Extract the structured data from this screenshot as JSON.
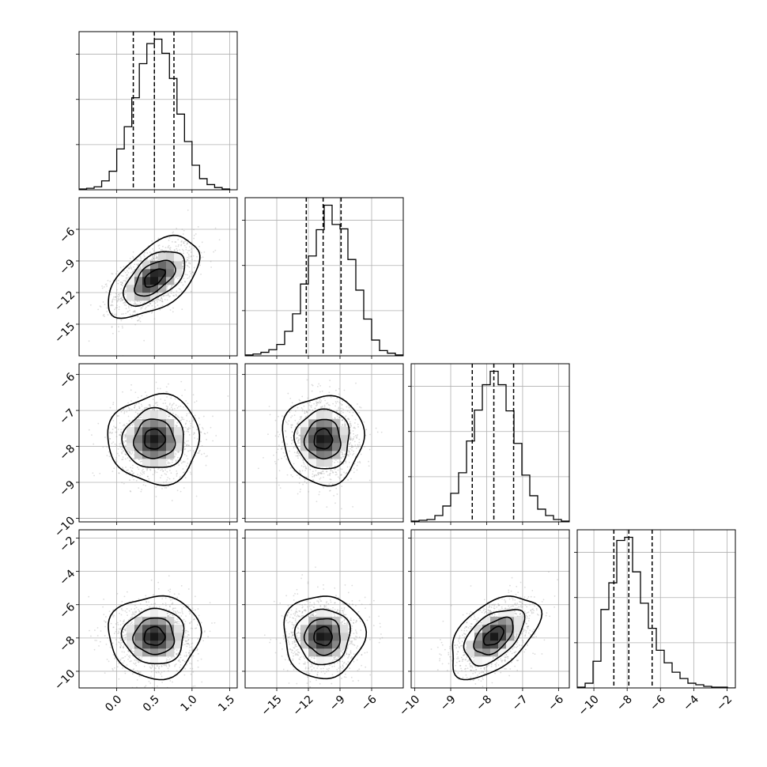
{
  "chart_data": {
    "type": "corner",
    "parameters": [
      {
        "range": [
          -0.5,
          1.6
        ],
        "ticks": [
          0.0,
          0.5,
          1.0,
          1.5
        ],
        "tick_labels": [
          "0.0",
          "0.5",
          "1.0",
          "1.5"
        ],
        "quantiles": [
          0.22,
          0.5,
          0.76
        ],
        "mean": 0.5,
        "sd": 0.27
      },
      {
        "range": [
          -18.0,
          -3.0
        ],
        "ticks": [
          -15,
          -12,
          -9,
          -6
        ],
        "tick_labels": [
          "−15",
          "−12",
          "−9",
          "−6"
        ],
        "quantiles": [
          -12.2,
          -10.6,
          -8.9
        ],
        "mean": -10.6,
        "sd": 1.7
      },
      {
        "range": [
          -10.1,
          -5.7
        ],
        "ticks": [
          -10,
          -9,
          -8,
          -7,
          -6
        ],
        "tick_labels": [
          "−10",
          "−9",
          "−8",
          "−7",
          "−6"
        ],
        "quantiles": [
          -8.4,
          -7.8,
          -7.25
        ],
        "mean": -7.8,
        "sd": 0.55
      },
      {
        "range": [
          -11.0,
          -1.5
        ],
        "ticks": [
          -10,
          -8,
          -6,
          -4,
          -2
        ],
        "tick_labels": [
          "−10",
          "−8",
          "−6",
          "−4",
          "−2"
        ],
        "quantiles": [
          -8.8,
          -7.9,
          -6.5
        ],
        "mean": -7.9,
        "sd": 1.1
      }
    ],
    "correlations": [
      [
        1,
        0.55,
        0.0,
        0.0
      ],
      [
        0.55,
        1,
        0.0,
        0.0
      ],
      [
        0.0,
        0.0,
        1,
        0.5
      ],
      [
        0.0,
        0.0,
        0.5,
        1
      ]
    ],
    "histograms": [
      {
        "edges": [
          -0.5,
          -0.4,
          -0.3,
          -0.2,
          -0.1,
          0.0,
          0.1,
          0.2,
          0.3,
          0.4,
          0.5,
          0.6,
          0.7,
          0.8,
          0.9,
          1.0,
          1.1,
          1.2,
          1.3,
          1.4,
          1.5
        ],
        "counts": [
          1,
          2,
          4,
          12,
          25,
          55,
          85,
          124,
          170,
          197,
          203,
          184,
          150,
          102,
          65,
          33,
          15,
          7,
          3,
          1
        ]
      },
      {
        "edges": [
          -18,
          -17.25,
          -16.5,
          -15.75,
          -15,
          -14.25,
          -13.5,
          -12.75,
          -12,
          -11.25,
          -10.5,
          -9.75,
          -9,
          -8.25,
          -7.5,
          -6.75,
          -6,
          -5.25,
          -4.5,
          -3.75,
          -3
        ],
        "counts": [
          1,
          2,
          4,
          7,
          13,
          28,
          48,
          82,
          114,
          144,
          172,
          150,
          145,
          110,
          75,
          42,
          18,
          6,
          3,
          1
        ]
      },
      {
        "edges": [
          -10.1,
          -9.88,
          -9.66,
          -9.44,
          -9.22,
          -9.0,
          -8.78,
          -8.56,
          -8.34,
          -8.12,
          -7.9,
          -7.68,
          -7.46,
          -7.24,
          -7.02,
          -6.8,
          -6.58,
          -6.36,
          -6.14,
          -5.92,
          -5.7
        ],
        "counts": [
          1,
          2,
          3,
          8,
          20,
          36,
          62,
          102,
          141,
          173,
          190,
          173,
          140,
          99,
          59,
          33,
          16,
          8,
          3,
          1
        ]
      },
      {
        "edges": [
          -11.0,
          -10.525,
          -10.05,
          -9.575,
          -9.1,
          -8.625,
          -8.15,
          -7.675,
          -7.2,
          -6.725,
          -6.25,
          -5.775,
          -5.3,
          -4.825,
          -4.35,
          -3.875,
          -3.4,
          -2.925,
          -2.45,
          -1.975,
          -1.5
        ],
        "counts": [
          1,
          6,
          34,
          100,
          134,
          188,
          192,
          148,
          108,
          76,
          48,
          32,
          20,
          12,
          6,
          4,
          2,
          1,
          1,
          0
        ]
      }
    ],
    "contour_levels": 4,
    "grid": true,
    "title": "",
    "labels": []
  }
}
